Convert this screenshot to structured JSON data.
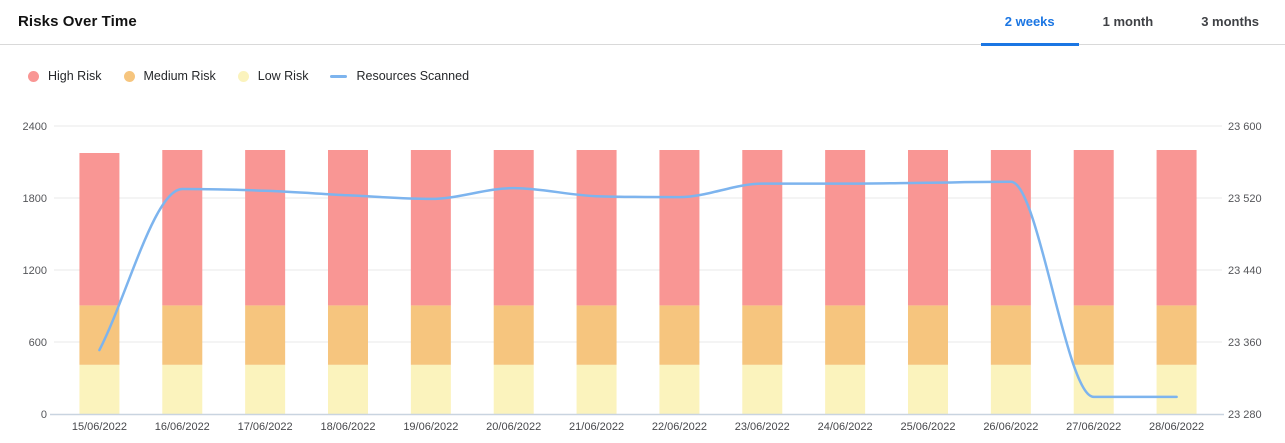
{
  "header": {
    "title": "Risks Over Time",
    "tabs": [
      {
        "label": "2 weeks",
        "active": true
      },
      {
        "label": "1 month",
        "active": false
      },
      {
        "label": "3 months",
        "active": false
      }
    ],
    "active_tab_color": "#1b76e3"
  },
  "legend": {
    "items": [
      {
        "label": "High Risk",
        "swatch": "dot",
        "color": "#f99694"
      },
      {
        "label": "Medium Risk",
        "swatch": "dot",
        "color": "#f6c57e"
      },
      {
        "label": "Low Risk",
        "swatch": "dot",
        "color": "#fbf3bd"
      },
      {
        "label": "Resources Scanned",
        "swatch": "line",
        "color": "#7db4ee"
      }
    ]
  },
  "chart_data": {
    "type": "bar",
    "subtype": "stacked-bars-with-line-overlay",
    "categories": [
      "15/06/2022",
      "16/06/2022",
      "17/06/2022",
      "18/06/2022",
      "19/06/2022",
      "20/06/2022",
      "21/06/2022",
      "22/06/2022",
      "23/06/2022",
      "24/06/2022",
      "25/06/2022",
      "26/06/2022",
      "27/06/2022",
      "28/06/2022"
    ],
    "series": [
      {
        "name": "Low Risk",
        "type": "bar",
        "color": "#fbf3bd",
        "values": [
          410,
          410,
          410,
          410,
          410,
          410,
          410,
          410,
          410,
          410,
          410,
          410,
          410,
          410
        ]
      },
      {
        "name": "Medium Risk",
        "type": "bar",
        "color": "#f6c57e",
        "values": [
          495,
          495,
          495,
          495,
          495,
          495,
          495,
          495,
          495,
          495,
          495,
          495,
          495,
          495
        ]
      },
      {
        "name": "High Risk",
        "type": "bar",
        "color": "#f99694",
        "values": [
          1270,
          1295,
          1295,
          1295,
          1295,
          1295,
          1295,
          1295,
          1295,
          1295,
          1295,
          1295,
          1295,
          1295
        ]
      },
      {
        "name": "Resources Scanned",
        "type": "line",
        "color": "#7db4ee",
        "axis": "right",
        "values": [
          23351,
          23530,
          23528,
          23523,
          23519,
          23531,
          23522,
          23521,
          23536,
          23536,
          23537,
          23538,
          23299,
          23299
        ]
      }
    ],
    "left_axis": {
      "range": [
        0,
        2400
      ],
      "ticks": [
        0,
        600,
        1200,
        1800,
        2400
      ],
      "tick_labels": [
        "0",
        "600",
        "1200",
        "1800",
        "2400"
      ]
    },
    "right_axis": {
      "range": [
        23280,
        23600
      ],
      "ticks": [
        23280,
        23360,
        23440,
        23520,
        23600
      ],
      "tick_labels": [
        "23 280",
        "23 360",
        "23 440",
        "23 520",
        "23 600"
      ]
    },
    "grid": "horizontal",
    "grid_color": "#e8e8e8",
    "baseline_color": "#c9d4e0",
    "tick_color": "#55565a",
    "legend_position": "top-left"
  }
}
